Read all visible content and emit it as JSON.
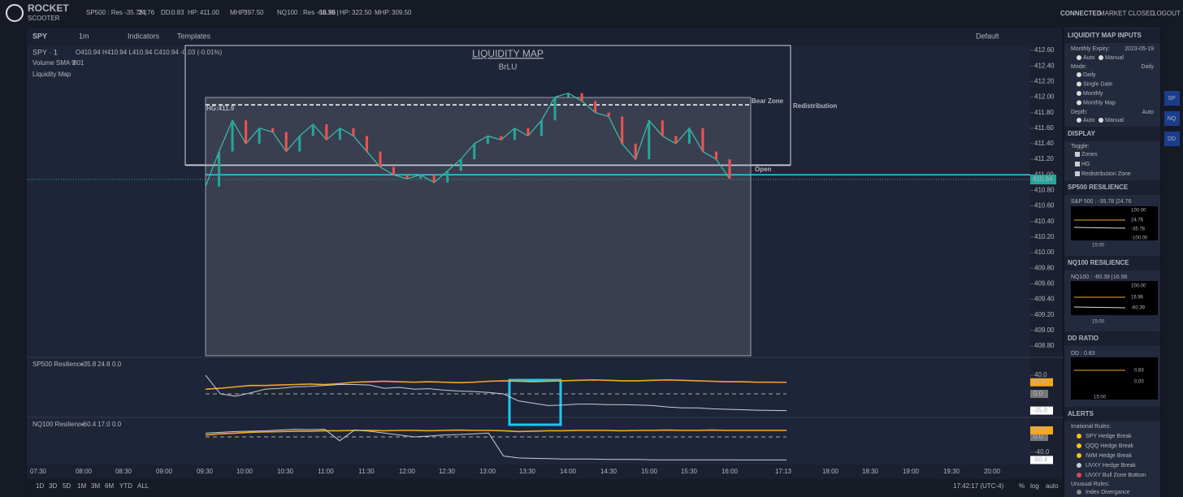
{
  "top_bar": {
    "brand": "ROCKET",
    "brand_sub": "SCOOTER",
    "stats": [
      "SP500 : Res -35.78 |",
      "24.76",
      "DD:",
      "0.83",
      "HP:",
      "411.00",
      "MHP:",
      "397.50",
      "NQ100 : Res -60.39 |",
      "16.96",
      "HP:",
      "322.50",
      "MHP:",
      "309.50"
    ],
    "connected": "CONNECTED",
    "closed": "MARKET CLOSED",
    "logout": "LOGOUT"
  },
  "toolbar": {
    "symbol": "SPY",
    "interval": "1m",
    "indicators": "Indicators",
    "templates": "Templates",
    "layout": "Default"
  },
  "legend": {
    "symbol": "SPY · 1",
    "ohlc": "O410.94 H410.94 L410.94 C410.94 -0.03 (-0.01%)",
    "volume": "Volume SMA 9",
    "volume_value": "801",
    "study": "Liquidity Map"
  },
  "overlay": {
    "title": "LIQUIDITY MAP",
    "subtitle": "BrLU",
    "hg": "HG:411.9",
    "bear_zone": "Bear Zone",
    "redistribution": "Redistribution",
    "open": "Open",
    "last": "410.94"
  },
  "price": {
    "ylim": [
      408.675,
      412.663
    ],
    "yticks": [
      {
        "value": 412.6,
        "label": "412.60"
      },
      {
        "value": 412.4,
        "label": "412.40"
      },
      {
        "value": 412.2,
        "label": "412.20"
      },
      {
        "value": 412.0,
        "label": "412.00"
      },
      {
        "value": 411.8,
        "label": "411.80"
      },
      {
        "value": 411.6,
        "label": "411.60"
      },
      {
        "value": 411.4,
        "label": "411.40"
      },
      {
        "value": 411.2,
        "label": "411.20"
      },
      {
        "value": 411.0,
        "label": "411.00"
      },
      {
        "value": 410.8,
        "label": "410.80"
      },
      {
        "value": 410.6,
        "label": "410.60"
      },
      {
        "value": 410.4,
        "label": "410.40"
      },
      {
        "value": 410.2,
        "label": "410.20"
      },
      {
        "value": 410.0,
        "label": "410.00"
      },
      {
        "value": 409.8,
        "label": "409.80"
      },
      {
        "value": 409.6,
        "label": "409.60"
      },
      {
        "value": 409.4,
        "label": "409.40"
      },
      {
        "value": 409.2,
        "label": "409.20"
      },
      {
        "value": 409.0,
        "label": "409.00"
      },
      {
        "value": 408.8,
        "label": "408.80"
      }
    ],
    "values": [
      410.85,
      411.3,
      411.7,
      411.4,
      411.6,
      411.55,
      411.3,
      411.5,
      411.65,
      411.45,
      411.6,
      411.5,
      411.3,
      411.1,
      411.0,
      410.95,
      411.0,
      410.9,
      411.05,
      411.2,
      411.4,
      411.5,
      411.45,
      411.6,
      411.5,
      411.7,
      412.0,
      412.05,
      411.95,
      411.8,
      411.75,
      411.4,
      411.2,
      411.7,
      411.5,
      411.4,
      411.6,
      411.3,
      411.2,
      410.95
    ],
    "hg_level": 411.9,
    "open_level": 411.12,
    "zone_level": 411.0,
    "last_price": 410.94
  },
  "time_labels": [
    "07:30",
    "08:00",
    "08:30",
    "09:00",
    "09:30",
    "10:00",
    "10:30",
    "11:00",
    "11:30",
    "12:00",
    "12:30",
    "13:00",
    "13:30",
    "14:00",
    "14:30",
    "15:00",
    "15:30",
    "16:00",
    "17:13",
    "18:00",
    "18:30",
    "19:00",
    "19:30",
    "20:00"
  ],
  "sp500_pane": {
    "label": "SP500 Resilience",
    "readout": [
      "−35.8",
      "24.8",
      "0.0"
    ],
    "ylim": [
      -48.7,
      78.3
    ],
    "yticks": [
      {
        "value": 40,
        "label": "40.0"
      }
    ],
    "series": [
      {
        "color": "#f5a623",
        "values": [
          10,
          12,
          15,
          18,
          18,
          19,
          20,
          21,
          20,
          22,
          25,
          26,
          27,
          26,
          25,
          26,
          25,
          24,
          25,
          27,
          28,
          27,
          26,
          27,
          28,
          29,
          30,
          29,
          28,
          28,
          29,
          30,
          29,
          28,
          27,
          26,
          26,
          25,
          25,
          24.8
        ],
        "last_label": "24.8"
      },
      {
        "color": "#c8ccd6",
        "values": [
          40,
          0,
          -5,
          2,
          10,
          12,
          15,
          16,
          18,
          20,
          20,
          19,
          12,
          14,
          10,
          11,
          8,
          6,
          5,
          3,
          0,
          -15,
          -20,
          -25,
          -24,
          -22,
          -22,
          -23,
          -23,
          -24,
          -25,
          -28,
          -30,
          -30,
          -32,
          -33,
          -34,
          -35,
          -35.5,
          -35.8
        ],
        "last_label": "-35.8"
      }
    ],
    "zero": {
      "value": 0,
      "label": "0.0"
    }
  },
  "nq100_pane": {
    "label": "NQ100 Resilience",
    "readout": [
      "−60.4",
      "17.0",
      "0.0"
    ],
    "ylim": [
      -72.3,
      48.9
    ],
    "yticks": [
      {
        "value": -40,
        "label": "-40.0"
      }
    ],
    "series": [
      {
        "color": "#f5a623",
        "values": [
          5,
          8,
          10,
          12,
          13,
          14,
          15,
          15,
          16,
          16,
          17,
          17,
          16,
          17,
          17,
          16,
          17,
          18,
          17,
          17,
          16,
          14,
          15,
          16,
          16,
          17,
          17,
          17,
          16,
          17,
          17,
          18,
          17,
          17,
          18,
          17,
          17,
          17,
          17,
          17.0
        ],
        "last_label": "17.0"
      },
      {
        "color": "#c8ccd6",
        "values": [
          10,
          12,
          14,
          15,
          16,
          18,
          20,
          19,
          20,
          -10,
          18,
          15,
          10,
          5,
          0,
          2,
          5,
          6,
          8,
          10,
          -50,
          -55,
          -56,
          -57,
          -58,
          -58,
          -58,
          -59,
          -59,
          -59,
          -60,
          -60,
          -60,
          -60,
          -60,
          -60.2,
          -60.3,
          -60.3,
          -60.4,
          -60.4
        ],
        "last_label": "-60.4"
      }
    ],
    "zero": {
      "value": 0,
      "label": "0.0"
    }
  },
  "bottom_bar": {
    "ranges": [
      "1D",
      "3D",
      "5D",
      "1M",
      "3M",
      "6M",
      "YTD",
      "ALL"
    ],
    "clock": "17:42:17 (UTC-4)",
    "pct": "%",
    "log": "log",
    "auto": "auto"
  },
  "panel": {
    "inputs": "LIQUIDITY MAP INPUTS",
    "expiry_label": "Monthly Expiry:",
    "expiry": "2023-05-19",
    "auto": "Auto",
    "manual": "Manual",
    "mode_label": "Mode:",
    "mode": "Daily",
    "modes": [
      "Daily",
      "Single Date",
      "Monthly",
      "Monthly Map"
    ],
    "depth_label": "Depth:",
    "depth": "Auto",
    "depth_auto": "Auto",
    "depth_manual": "Manual",
    "display": "DISPLAY",
    "toggle": "Toggle:",
    "toggles": [
      "Zones",
      "HG",
      "Redistribution Zone"
    ],
    "sp_title": "SP500 RESILIENCE",
    "sp_text": "S&P 500 : -35.78 |",
    "sp_val": "24.76",
    "sp_mini": [
      "100.00",
      "24.76",
      "-35.78",
      "-100.00",
      "15:00"
    ],
    "nq_title": "NQ100 RESILIENCE",
    "nq_text": "NQ100 : -60.39 |",
    "nq_val": "16.96",
    "nq_mini": [
      "100.00",
      "16.96",
      "-60.39",
      "15:00"
    ],
    "dd_title": "DD RATIO",
    "dd_text": "DD :",
    "dd_val": "0.83",
    "dd_mini": [
      "0.83",
      "0.00",
      "15:00"
    ],
    "alerts": "ALERTS",
    "irrational": "Irrational Rules:",
    "rules": [
      "SPY Hedge Break",
      "QQQ Hedge Break",
      "IWM Hedge Break",
      "UVXY Hedge Break",
      "UVXY Bull Zone Bottom"
    ],
    "unusual": "Unusual Rules:",
    "unusual_rules": [
      "Index Divergance"
    ]
  },
  "side_icons": [
    "SP",
    "NQ",
    "DD"
  ]
}
